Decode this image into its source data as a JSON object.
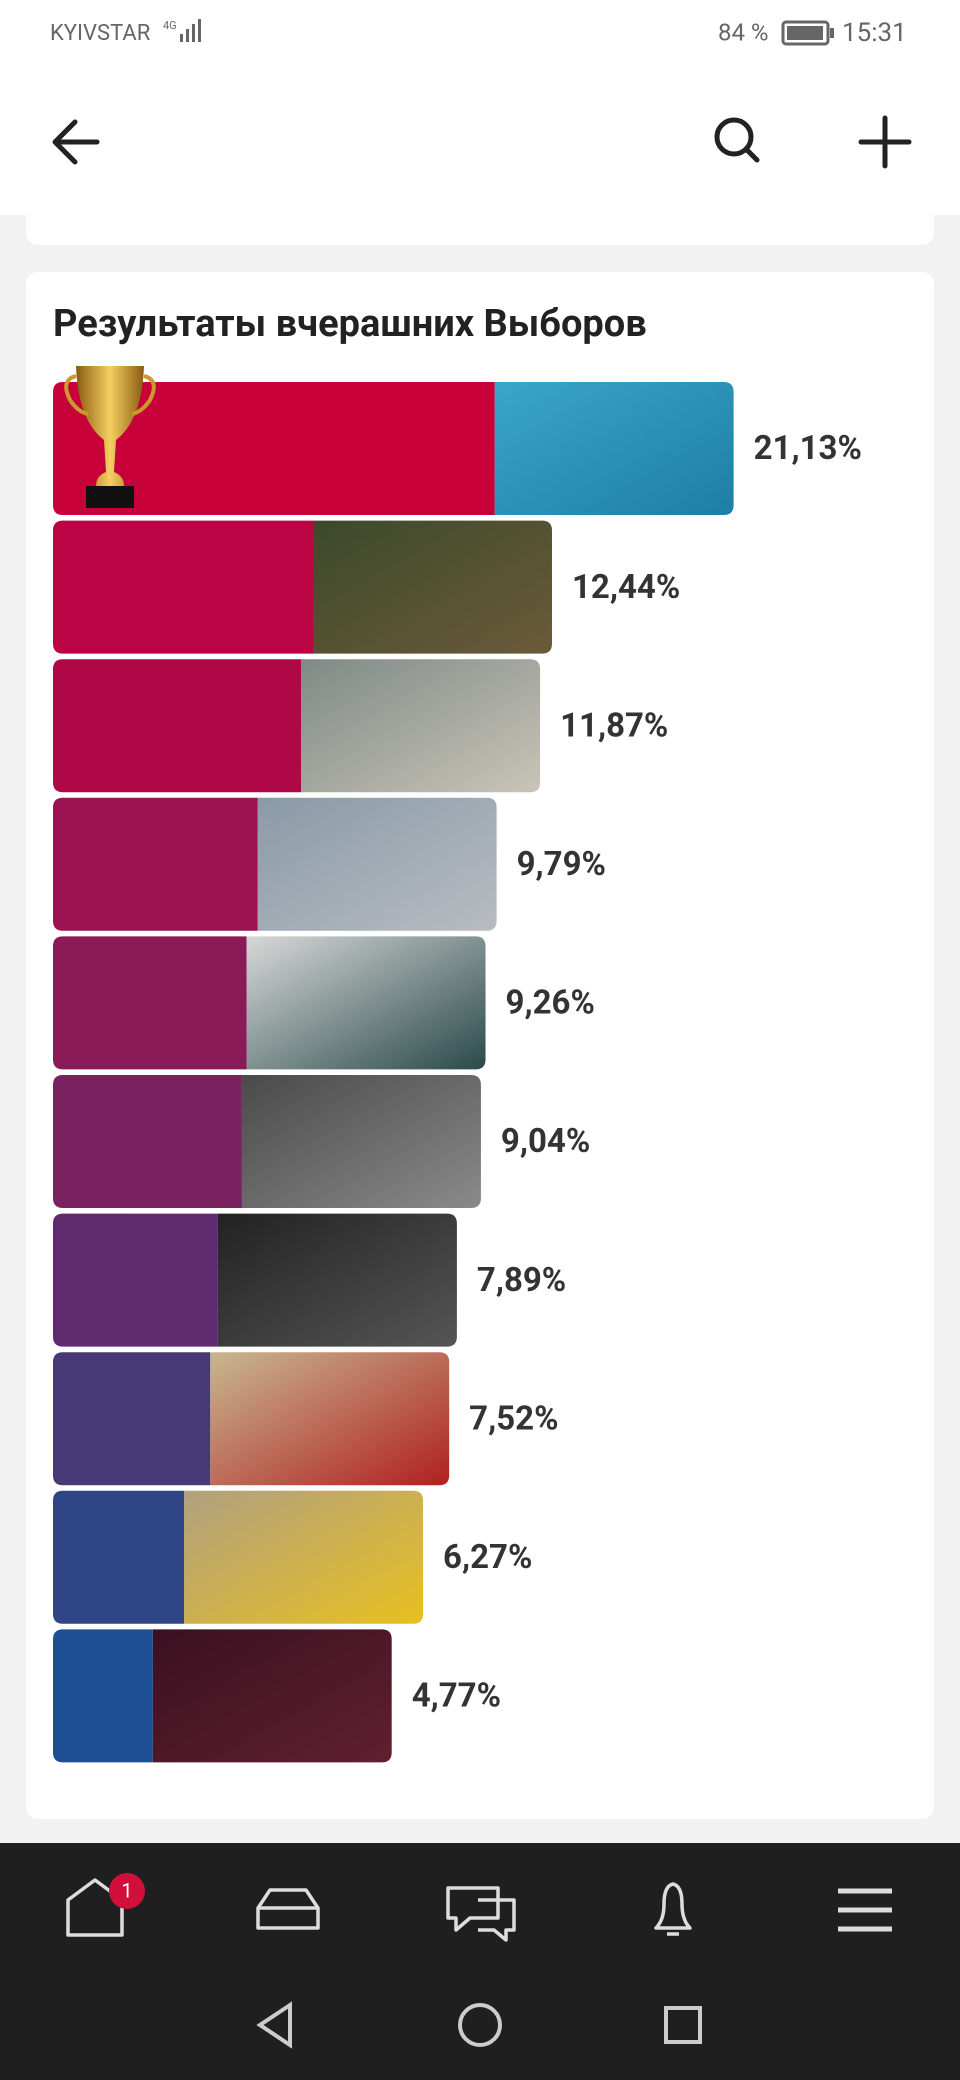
{
  "status_bar": {
    "carrier": "KYIVSTAR",
    "network": "4G",
    "battery": "84 %",
    "time": "15:31"
  },
  "nav": {
    "badge": "1"
  },
  "chart_data": {
    "type": "bar",
    "orientation": "horizontal",
    "title": "Результаты вчерашних Выборов",
    "values": [
      21.13,
      12.44,
      11.87,
      9.79,
      9.26,
      9.04,
      7.89,
      7.52,
      6.27,
      4.77
    ],
    "value_labels": [
      "21,13%",
      "12,44%",
      "11,87%",
      "9,79%",
      "9,26%",
      "9,04%",
      "7,89%",
      "7,52%",
      "6,27%",
      "4,77%"
    ],
    "colors": [
      "#c8003a",
      "#bb0443",
      "#ae0847",
      "#9a1350",
      "#8a1a58",
      "#7a2160",
      "#5f2a6e",
      "#473877",
      "#2f4585",
      "#1e4f96"
    ]
  }
}
